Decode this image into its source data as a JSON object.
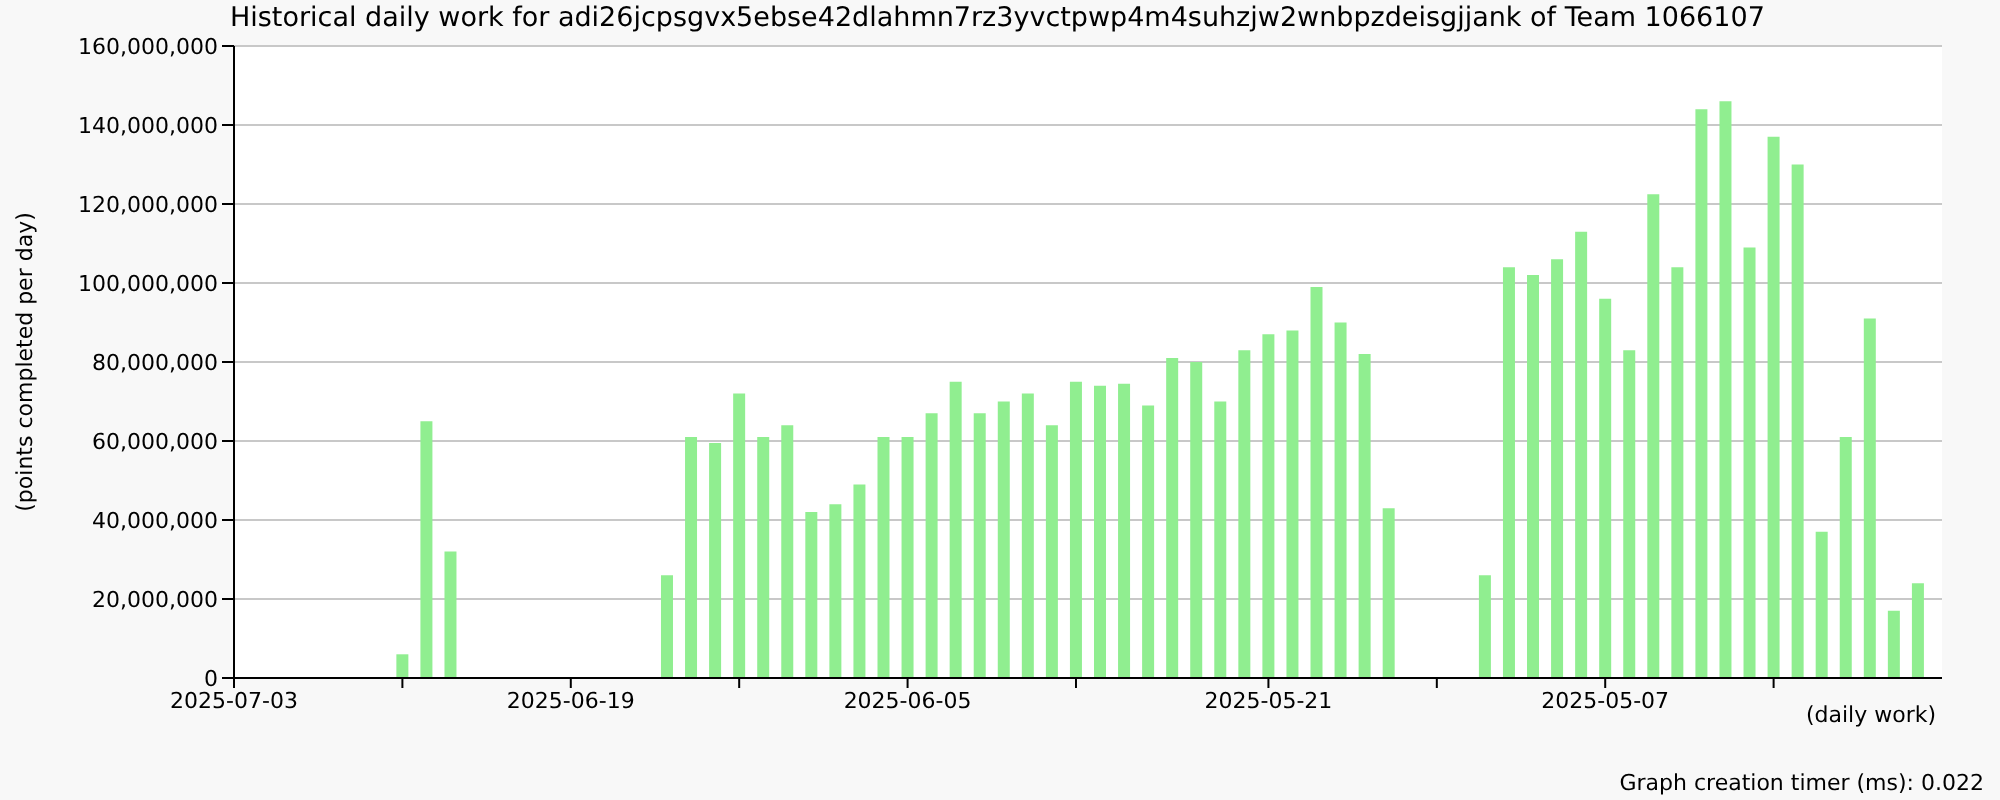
{
  "chart_data": {
    "type": "bar",
    "title": "Historical daily work for adi26jcpsgvx5ebse42dlahmn7rz3yvctpwp4m4suhzjw2wnbpzdeisgjjank of Team 1066107",
    "xlabel": "(daily work)",
    "ylabel": "(points completed per day)",
    "annotations": [
      "Graph creation timer (ms): 0.022"
    ],
    "x": [
      "2025-06-26",
      "2025-06-25",
      "2025-06-24",
      "2025-06-15",
      "2025-06-14",
      "2025-06-13",
      "2025-06-12",
      "2025-06-11",
      "2025-06-10",
      "2025-06-09",
      "2025-06-08",
      "2025-06-07",
      "2025-06-06",
      "2025-06-05",
      "2025-06-04",
      "2025-06-03",
      "2025-06-02",
      "2025-06-01",
      "2025-05-31",
      "2025-05-30",
      "2025-05-29",
      "2025-05-28",
      "2025-05-27",
      "2025-05-26",
      "2025-05-25",
      "2025-05-24",
      "2025-05-23",
      "2025-05-22",
      "2025-05-21",
      "2025-05-20",
      "2025-05-19",
      "2025-05-18",
      "2025-05-17",
      "2025-05-16",
      "2025-05-12",
      "2025-05-11",
      "2025-05-10",
      "2025-05-09",
      "2025-05-08",
      "2025-05-07",
      "2025-05-06",
      "2025-05-05",
      "2025-05-04",
      "2025-05-03",
      "2025-05-02",
      "2025-05-01",
      "2025-04-30",
      "2025-04-29",
      "2025-04-28",
      "2025-04-27",
      "2025-04-26",
      "2025-04-25",
      "2025-04-24"
    ],
    "values": [
      6000000,
      65000000,
      32000000,
      26000000,
      61000000,
      59500000,
      72000000,
      61000000,
      64000000,
      42000000,
      44000000,
      49000000,
      61000000,
      61000000,
      67000000,
      75000000,
      67000000,
      70000000,
      72000000,
      64000000,
      75000000,
      74000000,
      74500000,
      69000000,
      81000000,
      80000000,
      70000000,
      83000000,
      87000000,
      88000000,
      99000000,
      90000000,
      82000000,
      43000000,
      26000000,
      104000000,
      102000000,
      106000000,
      113000000,
      96000000,
      83000000,
      122500000,
      104000000,
      144000000,
      146000000,
      109000000,
      137000000,
      130000000,
      37000000,
      61000000,
      91000000,
      17000000,
      24000000
    ],
    "color": "#90ee90",
    "xlim": [
      "2025-07-03",
      "2025-04-23"
    ],
    "xticks": [
      {
        "value": "2025-07-03",
        "label": "2025-07-03"
      },
      {
        "value": "2025-06-26",
        "label": null
      },
      {
        "value": "2025-06-19",
        "label": "2025-06-19"
      },
      {
        "value": "2025-06-12",
        "label": null
      },
      {
        "value": "2025-06-05",
        "label": "2025-06-05"
      },
      {
        "value": "2025-05-29",
        "label": null
      },
      {
        "value": "2025-05-21",
        "label": "2025-05-21"
      },
      {
        "value": "2025-05-14",
        "label": null
      },
      {
        "value": "2025-05-07",
        "label": "2025-05-07"
      },
      {
        "value": "2025-04-30",
        "label": null
      }
    ],
    "ylim": [
      0,
      160000000
    ],
    "yticks": [
      {
        "value": 0,
        "label": "0"
      },
      {
        "value": 20000000,
        "label": "20,000,000"
      },
      {
        "value": 40000000,
        "label": "40,000,000"
      },
      {
        "value": 60000000,
        "label": "60,000,000"
      },
      {
        "value": 80000000,
        "label": "80,000,000"
      },
      {
        "value": 100000000,
        "label": "100,000,000"
      },
      {
        "value": 120000000,
        "label": "120,000,000"
      },
      {
        "value": 140000000,
        "label": "140,000,000"
      },
      {
        "value": 160000000,
        "label": "160,000,000"
      }
    ],
    "grid": "y",
    "legend": false
  }
}
